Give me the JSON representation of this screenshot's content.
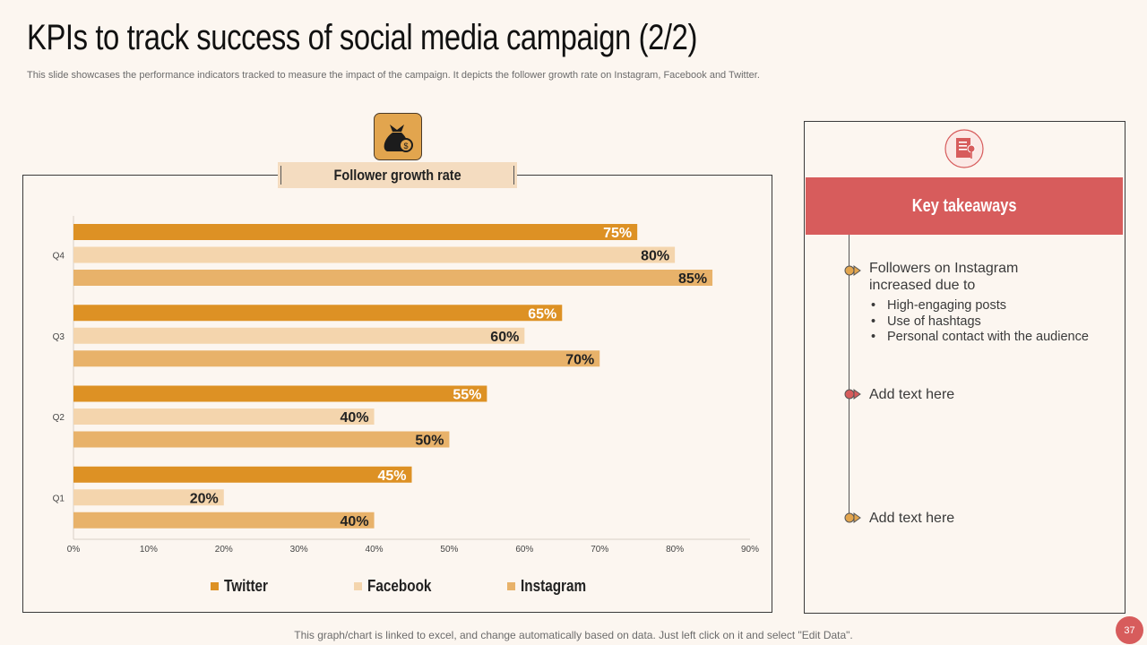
{
  "header": {
    "title": "KPIs to track success of social media campaign (2/2)",
    "subtitle": "This slide showcases the performance indicators tracked to measure the impact of the campaign. It depicts the follower growth rate on Instagram, Facebook and Twitter."
  },
  "chart_label": "Follower growth rate",
  "badge_icon": "money-bag-icon",
  "chart_data": {
    "type": "bar",
    "orientation": "horizontal",
    "title": "Follower growth rate",
    "categories": [
      "Q1",
      "Q2",
      "Q3",
      "Q4"
    ],
    "series": [
      {
        "name": "Twitter",
        "values": [
          45,
          55,
          65,
          75
        ],
        "color": "#dd9124",
        "label_color": "#ffffff"
      },
      {
        "name": "Facebook",
        "values": [
          20,
          40,
          60,
          80
        ],
        "color": "#f4d5ad",
        "label_color": "#222222"
      },
      {
        "name": "Instagram",
        "values": [
          40,
          50,
          70,
          85
        ],
        "color": "#e8b26a",
        "label_color": "#222222"
      }
    ],
    "xlim": [
      0,
      90
    ],
    "xticks": [
      "0%",
      "10%",
      "20%",
      "30%",
      "40%",
      "50%",
      "60%",
      "70%",
      "80%",
      "90%"
    ],
    "value_suffix": "%",
    "legend": "bottom",
    "grid": false
  },
  "legend": [
    {
      "label": "Twitter",
      "color": "#dd9124"
    },
    {
      "label": "Facebook",
      "color": "#f4d5ad"
    },
    {
      "label": "Instagram",
      "color": "#e8b26a"
    }
  ],
  "takeaways": {
    "header": "Key takeaways",
    "icon": "notebook-icon",
    "items": [
      {
        "text": "Followers on Instagram increased due to",
        "marker_color": "#e2a54e",
        "bullets": [
          "High-engaging posts",
          "Use of hashtags",
          "Personal contact with the audience"
        ]
      },
      {
        "text": "Add text here",
        "marker_color": "#d75c5c"
      },
      {
        "text": "Add text here",
        "marker_color": "#e2a54e"
      }
    ]
  },
  "footer": "This graph/chart is linked to excel,  and change automatically based on data. Just left click on it and select \"Edit Data\".",
  "page_number": "37"
}
